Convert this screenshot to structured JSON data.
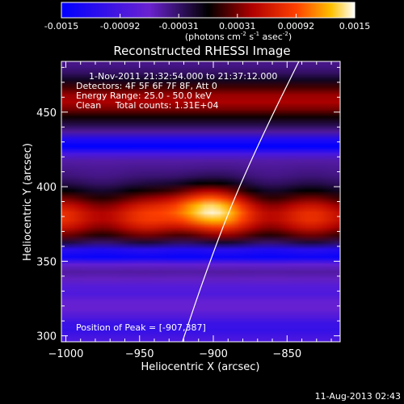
{
  "chart_data": {
    "type": "heatmap",
    "title": "Reconstructed RHESSI Image",
    "xlabel": "Heliocentric X (arcsec)",
    "ylabel": "Heliocentric Y (arcsec)",
    "xlim": [
      -1003,
      -814
    ],
    "ylim": [
      296,
      484
    ],
    "x_ticks": [
      -1000,
      -950,
      -900,
      -850
    ],
    "y_ticks": [
      300,
      350,
      400,
      450
    ],
    "colorbar": {
      "range": [
        -0.0015,
        0.0015
      ],
      "ticks": [
        "-0.0015",
        "-0.00092",
        "-0.00031",
        "0.00031",
        "0.00092",
        "0.0015"
      ],
      "label_main": "(photons cm",
      "label_exp1": "-2",
      "label_mid": " s",
      "label_exp2": "-1",
      "label_end": " asec",
      "label_exp3": "-2",
      "label_close": ")"
    },
    "annotations": {
      "time_range": "1-Nov-2011 21:32:54.000 to 21:37:12.000",
      "detectors": "Detectors: 4F 5F 6F 7F 8F, Att 0",
      "energy_range": "Energy Range: 25.0 - 50.0 keV",
      "clean": "Clean     Total counts: 1.31E+04",
      "peak": "Position of Peak = [-907,387]"
    },
    "peak_position": [
      -907,
      387
    ],
    "limb_curve": [
      [
        -921,
        296
      ],
      [
        -906,
        340
      ],
      [
        -887,
        390
      ],
      [
        -864,
        440
      ],
      [
        -842,
        484
      ]
    ],
    "bands": [
      {
        "y": 380,
        "sigma": 12,
        "amplitude": 0.0011
      },
      {
        "y": 458,
        "sigma": 10,
        "amplitude": 0.0009
      },
      {
        "y": 330,
        "sigma": 5,
        "amplitude": -0.0004
      },
      {
        "y": 305,
        "sigma": 8,
        "amplitude": -0.0006
      },
      {
        "y": 355,
        "sigma": 4,
        "amplitude": -0.0012
      },
      {
        "y": 428,
        "sigma": 4,
        "amplitude": -0.0013
      }
    ],
    "peak": {
      "x": -907,
      "y": 387,
      "sx": 18,
      "sy": 10,
      "amplitude": 0.0009
    }
  },
  "footer": {
    "timestamp": "11-Aug-2013 02:43"
  }
}
